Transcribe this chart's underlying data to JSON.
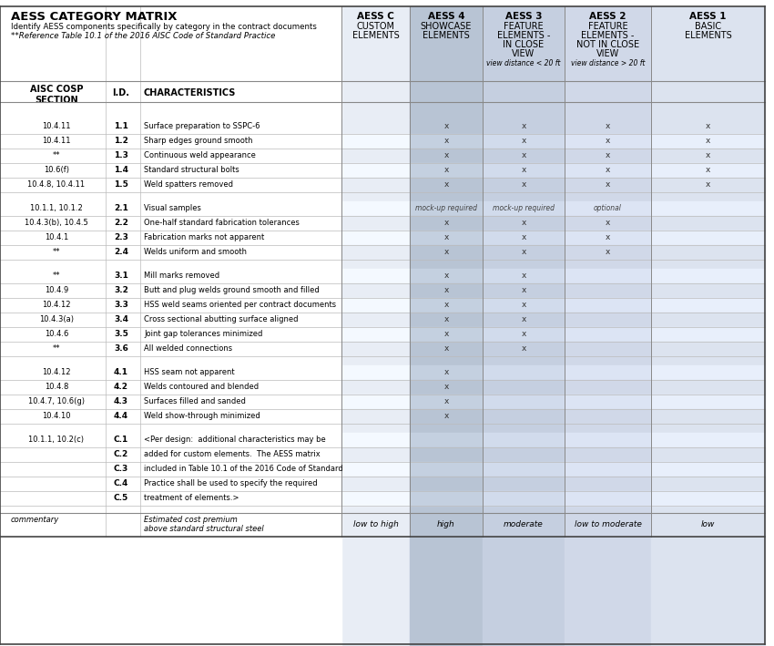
{
  "title": "AESS CATEGORY MATRIX",
  "subtitle1": "Identify AESS components specifically by category in the contract documents",
  "subtitle2": "**Reference Table 10.1 of the 2016 AISC Code of Standard Practice",
  "rows": [
    {
      "section": "10.4.11",
      "id": "1.1",
      "char": "Surface preparation to SSPC-6",
      "c": false,
      "c4": true,
      "c3": true,
      "c2": true,
      "c1": true,
      "group": 1
    },
    {
      "section": "10.4.11",
      "id": "1.2",
      "char": "Sharp edges ground smooth",
      "c": false,
      "c4": true,
      "c3": true,
      "c2": true,
      "c1": true,
      "group": 1
    },
    {
      "section": "**",
      "id": "1.3",
      "char": "Continuous weld appearance",
      "c": false,
      "c4": true,
      "c3": true,
      "c2": true,
      "c1": true,
      "group": 1
    },
    {
      "section": "10.6(f)",
      "id": "1.4",
      "char": "Standard structural bolts",
      "c": false,
      "c4": true,
      "c3": true,
      "c2": true,
      "c1": true,
      "group": 1
    },
    {
      "section": "10.4.8, 10.4.11",
      "id": "1.5",
      "char": "Weld spatters removed",
      "c": false,
      "c4": true,
      "c3": true,
      "c2": true,
      "c1": true,
      "group": 1
    },
    {
      "section": "10.1.1, 10.1.2",
      "id": "2.1",
      "char": "Visual samples",
      "c": false,
      "c4": "mock-up required",
      "c3": "mock-up required",
      "c2": "optional",
      "c1": false,
      "group": 2
    },
    {
      "section": "10.4.3(b), 10.4.5",
      "id": "2.2",
      "char": "One-half standard fabrication tolerances",
      "c": false,
      "c4": true,
      "c3": true,
      "c2": true,
      "c1": false,
      "group": 2
    },
    {
      "section": "10.4.1",
      "id": "2.3",
      "char": "Fabrication marks not apparent",
      "c": false,
      "c4": true,
      "c3": true,
      "c2": true,
      "c1": false,
      "group": 2
    },
    {
      "section": "**",
      "id": "2.4",
      "char": "Welds uniform and smooth",
      "c": false,
      "c4": true,
      "c3": true,
      "c2": true,
      "c1": false,
      "group": 2
    },
    {
      "section": "**",
      "id": "3.1",
      "char": "Mill marks removed",
      "c": false,
      "c4": true,
      "c3": true,
      "c2": false,
      "c1": false,
      "group": 3
    },
    {
      "section": "10.4.9",
      "id": "3.2",
      "char": "Butt and plug welds ground smooth and filled",
      "c": false,
      "c4": true,
      "c3": true,
      "c2": false,
      "c1": false,
      "group": 3
    },
    {
      "section": "10.4.12",
      "id": "3.3",
      "char": "HSS weld seams oriented per contract documents",
      "c": false,
      "c4": true,
      "c3": true,
      "c2": false,
      "c1": false,
      "group": 3
    },
    {
      "section": "10.4.3(a)",
      "id": "3.4",
      "char": "Cross sectional abutting surface aligned",
      "c": false,
      "c4": true,
      "c3": true,
      "c2": false,
      "c1": false,
      "group": 3
    },
    {
      "section": "10.4.6",
      "id": "3.5",
      "char": "Joint gap tolerances minimized",
      "c": false,
      "c4": true,
      "c3": true,
      "c2": false,
      "c1": false,
      "group": 3
    },
    {
      "section": "**",
      "id": "3.6",
      "char": "All welded connections",
      "c": false,
      "c4": true,
      "c3": true,
      "c2": false,
      "c1": false,
      "group": 3
    },
    {
      "section": "10.4.12",
      "id": "4.1",
      "char": "HSS seam not apparent",
      "c": false,
      "c4": true,
      "c3": false,
      "c2": false,
      "c1": false,
      "group": 4
    },
    {
      "section": "10.4.8",
      "id": "4.2",
      "char": "Welds contoured and blended",
      "c": false,
      "c4": true,
      "c3": false,
      "c2": false,
      "c1": false,
      "group": 4
    },
    {
      "section": "10.4.7, 10.6(g)",
      "id": "4.3",
      "char": "Surfaces filled and sanded",
      "c": false,
      "c4": true,
      "c3": false,
      "c2": false,
      "c1": false,
      "group": 4
    },
    {
      "section": "10.4.10",
      "id": "4.4",
      "char": "Weld show-through minimized",
      "c": false,
      "c4": true,
      "c3": false,
      "c2": false,
      "c1": false,
      "group": 4
    },
    {
      "section": "10.1.1, 10.2(c)",
      "id": "C.1",
      "char": "<Per design:  additional characteristics may be",
      "c": false,
      "c4": false,
      "c3": false,
      "c2": false,
      "c1": false,
      "group": 5
    },
    {
      "section": "",
      "id": "C.2",
      "char": "added for custom elements.  The AESS matrix",
      "c": false,
      "c4": false,
      "c3": false,
      "c2": false,
      "c1": false,
      "group": 5
    },
    {
      "section": "",
      "id": "C.3",
      "char": "included in Table 10.1 of the 2016 Code of Standard",
      "c": false,
      "c4": false,
      "c3": false,
      "c2": false,
      "c1": false,
      "group": 5
    },
    {
      "section": "",
      "id": "C.4",
      "char": "Practice shall be used to specify the required",
      "c": false,
      "c4": false,
      "c3": false,
      "c2": false,
      "c1": false,
      "group": 5
    },
    {
      "section": "",
      "id": "C.5",
      "char": "treatment of elements.>",
      "c": false,
      "c4": false,
      "c3": false,
      "c2": false,
      "c1": false,
      "group": 5
    }
  ],
  "footer_vals": [
    "low to high",
    "high",
    "moderate",
    "low to moderate",
    "low"
  ],
  "col_colors": [
    "#e8edf5",
    "#b8c4d4",
    "#c5cfe0",
    "#d0d8e8",
    "#dce3ef"
  ],
  "header_color": "#c8d0dc"
}
